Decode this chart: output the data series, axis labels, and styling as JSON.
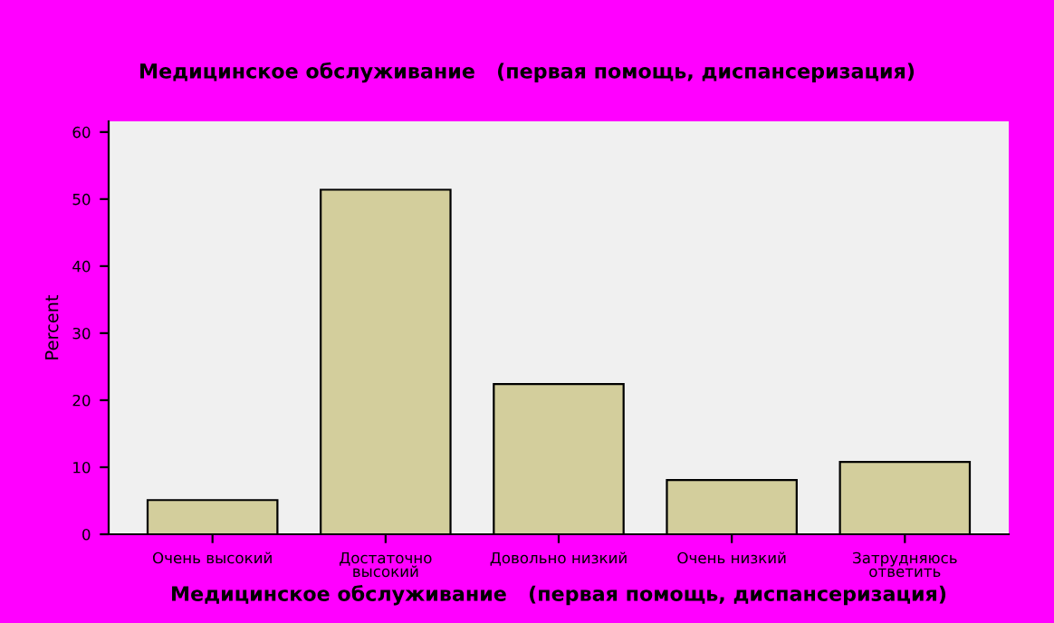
{
  "chart_data": {
    "type": "bar",
    "title": "Медицинское обслуживание   (первая помощь, диспансеризация)",
    "xlabel": "Медицинское обслуживание   (первая помощь, диспансеризация)",
    "ylabel": "Percent",
    "categories": [
      "Очень высокий",
      "Достаточно\nвысокий",
      "Довольно низкий",
      "Очень низкий",
      "Затрудняюсь\nответить"
    ],
    "values": [
      5.1,
      51.4,
      22.4,
      8.1,
      10.8
    ],
    "color": "#d3ce9c",
    "ylim": [
      0,
      61.6
    ],
    "yticks": [
      0,
      10,
      20,
      30,
      40,
      50,
      60
    ],
    "grid": false
  }
}
